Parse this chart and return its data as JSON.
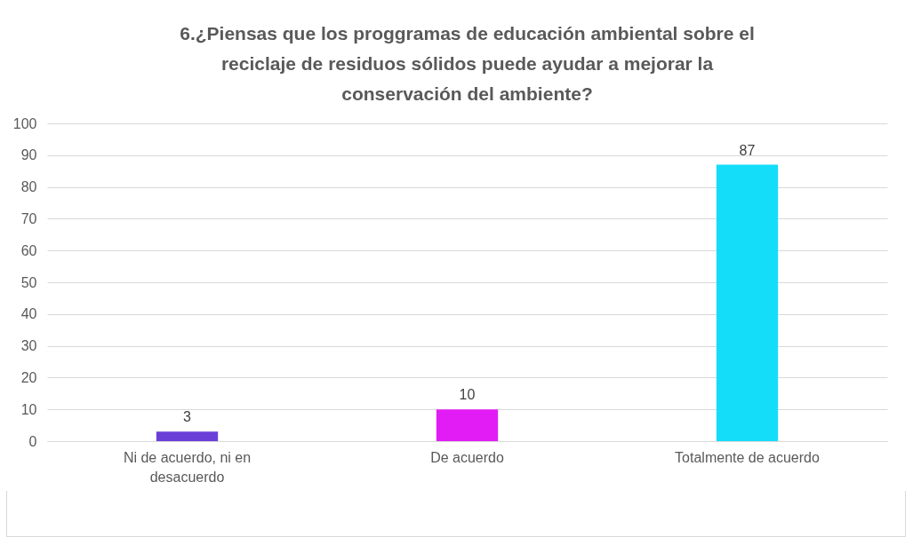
{
  "chart_data": {
    "type": "bar",
    "title": "6.¿Piensas que los proggramas de educación ambiental sobre el reciclaje de residuos sólidos puede ayudar a mejorar la conservación del ambiente?",
    "categories": [
      "Ni de acuerdo, ni en desacuerdo",
      "De acuerdo",
      "Totalmente de acuerdo"
    ],
    "values": [
      3,
      10,
      87
    ],
    "colors": [
      "#6a3fd8",
      "#e21cf5",
      "#14ddfa"
    ],
    "ylim": [
      0,
      100
    ],
    "yticks": [
      0,
      10,
      20,
      30,
      40,
      50,
      60,
      70,
      80,
      90,
      100
    ],
    "grid": "y",
    "data_labels": true,
    "legend": false
  }
}
